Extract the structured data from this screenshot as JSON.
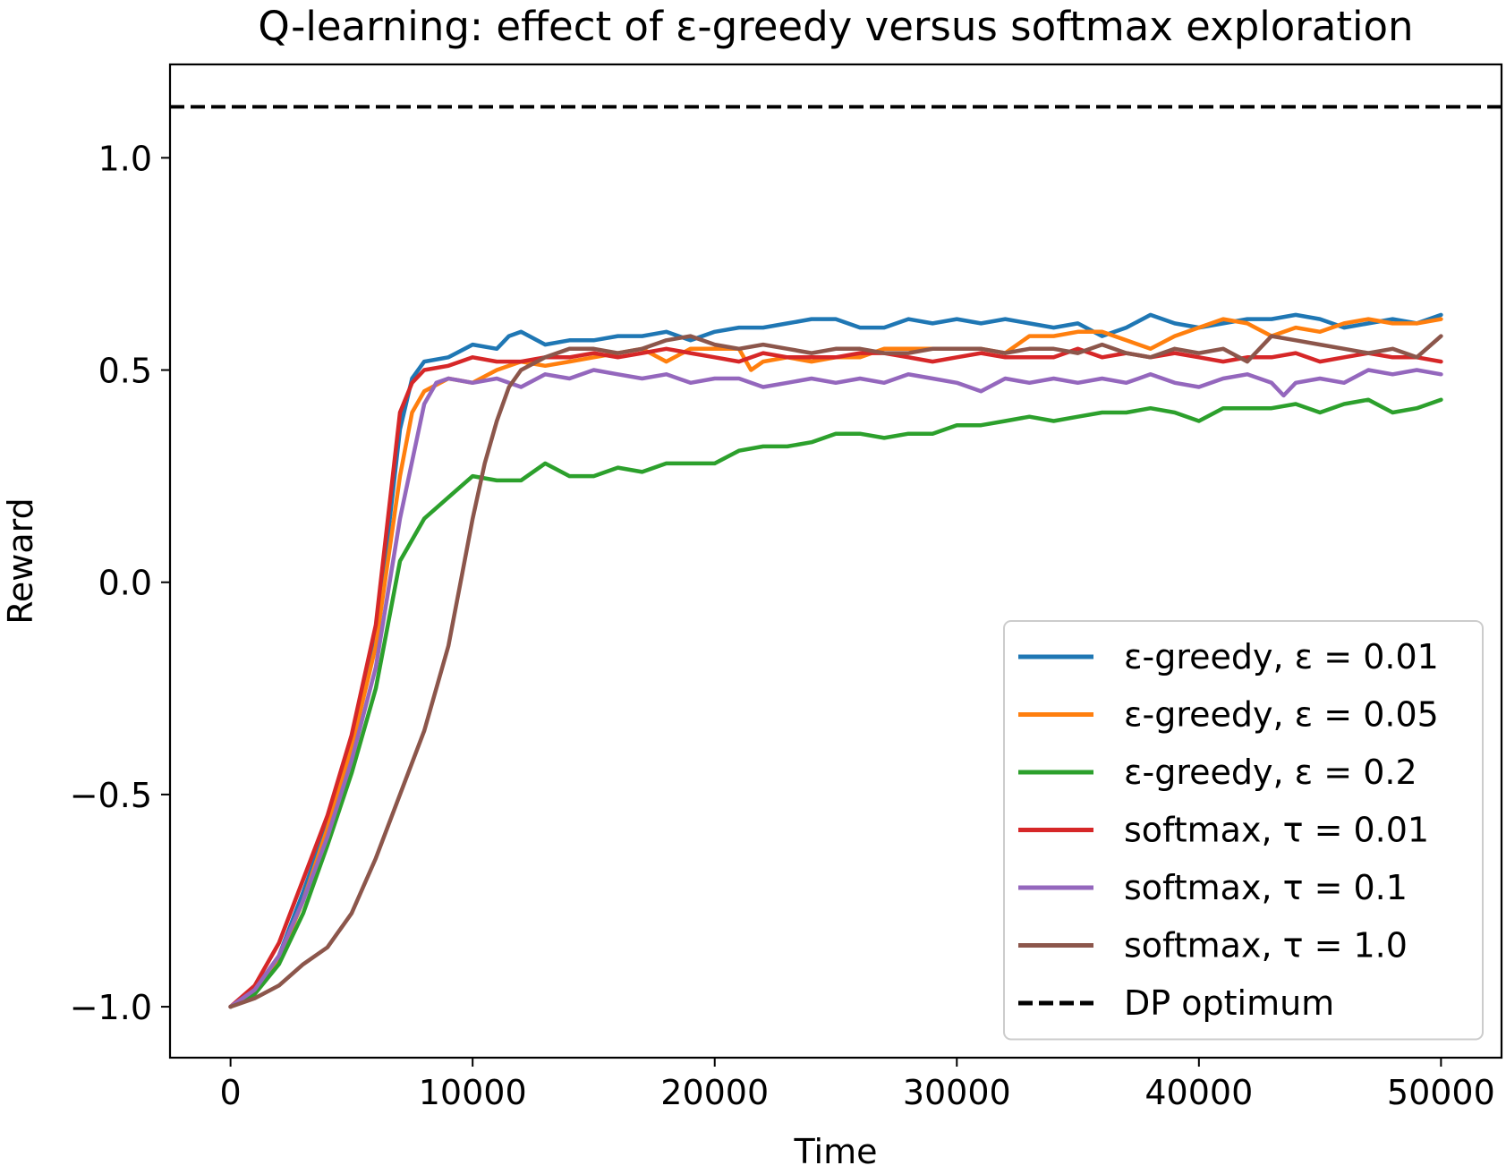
{
  "chart_data": {
    "type": "line",
    "title": "Q-learning: effect of ε-greedy versus softmax exploration",
    "xlabel": "Time",
    "ylabel": "Reward",
    "xlim": [
      -2500,
      52500
    ],
    "ylim": [
      -1.12,
      1.22
    ],
    "xticks": [
      0,
      10000,
      20000,
      30000,
      40000,
      50000
    ],
    "xtick_labels": [
      "0",
      "10000",
      "20000",
      "30000",
      "40000",
      "50000"
    ],
    "yticks": [
      -1.0,
      -0.5,
      0.0,
      0.5,
      1.0
    ],
    "ytick_labels": [
      "−1.0",
      "−0.5",
      "0.0",
      "0.5",
      "1.0"
    ],
    "grid": false,
    "legend_position": "lower-right",
    "series": [
      {
        "name": "ε-greedy, ε = 0.01",
        "color": "#1f77b4",
        "x": [
          0,
          1000,
          2000,
          3000,
          4000,
          5000,
          6000,
          7000,
          7500,
          8000,
          9000,
          10000,
          11000,
          11500,
          12000,
          13000,
          14000,
          15000,
          16000,
          17000,
          18000,
          19000,
          20000,
          21000,
          22000,
          23000,
          24000,
          25000,
          26000,
          27000,
          28000,
          29000,
          30000,
          31000,
          32000,
          33000,
          34000,
          35000,
          36000,
          37000,
          38000,
          39000,
          40000,
          41000,
          42000,
          43000,
          44000,
          45000,
          46000,
          47000,
          48000,
          49000,
          50000
        ],
        "y": [
          -1.0,
          -0.96,
          -0.88,
          -0.73,
          -0.57,
          -0.38,
          -0.14,
          0.36,
          0.48,
          0.52,
          0.53,
          0.56,
          0.55,
          0.58,
          0.59,
          0.56,
          0.57,
          0.57,
          0.58,
          0.58,
          0.59,
          0.57,
          0.59,
          0.6,
          0.6,
          0.61,
          0.62,
          0.62,
          0.6,
          0.6,
          0.62,
          0.61,
          0.62,
          0.61,
          0.62,
          0.61,
          0.6,
          0.61,
          0.58,
          0.6,
          0.63,
          0.61,
          0.6,
          0.61,
          0.62,
          0.62,
          0.63,
          0.62,
          0.6,
          0.61,
          0.62,
          0.61,
          0.63
        ]
      },
      {
        "name": "ε-greedy, ε = 0.05",
        "color": "#ff7f0e",
        "x": [
          0,
          1000,
          2000,
          3000,
          4000,
          5000,
          6000,
          7000,
          7500,
          8000,
          9000,
          10000,
          11000,
          12000,
          13000,
          14000,
          15000,
          16000,
          17000,
          18000,
          19000,
          20000,
          21000,
          21500,
          22000,
          23000,
          24000,
          25000,
          26000,
          27000,
          28000,
          29000,
          30000,
          31000,
          32000,
          33000,
          34000,
          35000,
          36000,
          37000,
          38000,
          39000,
          40000,
          41000,
          42000,
          43000,
          44000,
          45000,
          46000,
          47000,
          48000,
          49000,
          50000
        ],
        "y": [
          -1.0,
          -0.96,
          -0.89,
          -0.75,
          -0.58,
          -0.39,
          -0.15,
          0.25,
          0.4,
          0.45,
          0.48,
          0.47,
          0.5,
          0.52,
          0.51,
          0.52,
          0.53,
          0.54,
          0.55,
          0.52,
          0.55,
          0.55,
          0.55,
          0.5,
          0.52,
          0.53,
          0.52,
          0.53,
          0.53,
          0.55,
          0.55,
          0.55,
          0.55,
          0.55,
          0.54,
          0.58,
          0.58,
          0.59,
          0.59,
          0.57,
          0.55,
          0.58,
          0.6,
          0.62,
          0.61,
          0.58,
          0.6,
          0.59,
          0.61,
          0.62,
          0.61,
          0.61,
          0.62
        ]
      },
      {
        "name": "ε-greedy, ε = 0.2",
        "color": "#2ca02c",
        "x": [
          0,
          1000,
          2000,
          3000,
          4000,
          5000,
          6000,
          7000,
          8000,
          9000,
          10000,
          11000,
          12000,
          13000,
          14000,
          15000,
          16000,
          17000,
          18000,
          19000,
          20000,
          21000,
          22000,
          23000,
          24000,
          25000,
          26000,
          27000,
          28000,
          29000,
          30000,
          31000,
          32000,
          33000,
          34000,
          35000,
          36000,
          37000,
          38000,
          39000,
          40000,
          41000,
          42000,
          43000,
          44000,
          45000,
          46000,
          47000,
          48000,
          49000,
          50000
        ],
        "y": [
          -1.0,
          -0.97,
          -0.9,
          -0.78,
          -0.62,
          -0.45,
          -0.25,
          0.05,
          0.15,
          0.2,
          0.25,
          0.24,
          0.24,
          0.28,
          0.25,
          0.25,
          0.27,
          0.26,
          0.28,
          0.28,
          0.28,
          0.31,
          0.32,
          0.32,
          0.33,
          0.35,
          0.35,
          0.34,
          0.35,
          0.35,
          0.37,
          0.37,
          0.38,
          0.39,
          0.38,
          0.39,
          0.4,
          0.4,
          0.41,
          0.4,
          0.38,
          0.41,
          0.41,
          0.41,
          0.42,
          0.4,
          0.42,
          0.43,
          0.4,
          0.41,
          0.43
        ]
      },
      {
        "name": "softmax, τ = 0.01",
        "color": "#d62728",
        "x": [
          0,
          1000,
          2000,
          3000,
          4000,
          5000,
          6000,
          7000,
          7500,
          8000,
          9000,
          10000,
          11000,
          12000,
          13000,
          14000,
          15000,
          16000,
          17000,
          18000,
          19000,
          20000,
          21000,
          22000,
          23000,
          24000,
          25000,
          26000,
          27000,
          28000,
          29000,
          30000,
          31000,
          32000,
          33000,
          34000,
          35000,
          36000,
          37000,
          38000,
          39000,
          40000,
          41000,
          42000,
          43000,
          44000,
          45000,
          46000,
          47000,
          48000,
          49000,
          50000
        ],
        "y": [
          -1.0,
          -0.95,
          -0.85,
          -0.7,
          -0.55,
          -0.36,
          -0.1,
          0.4,
          0.47,
          0.5,
          0.51,
          0.53,
          0.52,
          0.52,
          0.53,
          0.53,
          0.54,
          0.53,
          0.54,
          0.55,
          0.54,
          0.53,
          0.52,
          0.54,
          0.53,
          0.53,
          0.53,
          0.54,
          0.54,
          0.53,
          0.52,
          0.53,
          0.54,
          0.53,
          0.53,
          0.53,
          0.55,
          0.53,
          0.54,
          0.53,
          0.54,
          0.53,
          0.52,
          0.53,
          0.53,
          0.54,
          0.52,
          0.53,
          0.54,
          0.53,
          0.53,
          0.52
        ]
      },
      {
        "name": "softmax, τ = 0.1",
        "color": "#9467bd",
        "x": [
          0,
          1000,
          2000,
          3000,
          4000,
          5000,
          6000,
          7000,
          8000,
          8500,
          9000,
          10000,
          11000,
          12000,
          13000,
          14000,
          15000,
          16000,
          17000,
          18000,
          19000,
          20000,
          21000,
          22000,
          23000,
          24000,
          25000,
          26000,
          27000,
          28000,
          29000,
          30000,
          31000,
          32000,
          33000,
          34000,
          35000,
          36000,
          37000,
          38000,
          39000,
          40000,
          41000,
          42000,
          43000,
          43500,
          44000,
          45000,
          46000,
          47000,
          48000,
          49000,
          50000
        ],
        "y": [
          -1.0,
          -0.96,
          -0.88,
          -0.75,
          -0.6,
          -0.42,
          -0.2,
          0.15,
          0.42,
          0.47,
          0.48,
          0.47,
          0.48,
          0.46,
          0.49,
          0.48,
          0.5,
          0.49,
          0.48,
          0.49,
          0.47,
          0.48,
          0.48,
          0.46,
          0.47,
          0.48,
          0.47,
          0.48,
          0.47,
          0.49,
          0.48,
          0.47,
          0.45,
          0.48,
          0.47,
          0.48,
          0.47,
          0.48,
          0.47,
          0.49,
          0.47,
          0.46,
          0.48,
          0.49,
          0.47,
          0.44,
          0.47,
          0.48,
          0.47,
          0.5,
          0.49,
          0.5,
          0.49
        ]
      },
      {
        "name": "softmax, τ = 1.0",
        "color": "#8c564b",
        "x": [
          0,
          1000,
          2000,
          3000,
          4000,
          5000,
          6000,
          7000,
          8000,
          9000,
          9500,
          10000,
          10500,
          11000,
          11500,
          12000,
          13000,
          14000,
          15000,
          16000,
          17000,
          18000,
          19000,
          20000,
          21000,
          22000,
          23000,
          24000,
          25000,
          26000,
          27000,
          28000,
          29000,
          30000,
          31000,
          32000,
          33000,
          34000,
          35000,
          36000,
          37000,
          38000,
          39000,
          40000,
          41000,
          42000,
          43000,
          44000,
          45000,
          46000,
          47000,
          48000,
          49000,
          50000
        ],
        "y": [
          -1.0,
          -0.98,
          -0.95,
          -0.9,
          -0.86,
          -0.78,
          -0.65,
          -0.5,
          -0.35,
          -0.15,
          0.0,
          0.15,
          0.28,
          0.38,
          0.46,
          0.5,
          0.53,
          0.55,
          0.55,
          0.54,
          0.55,
          0.57,
          0.58,
          0.56,
          0.55,
          0.56,
          0.55,
          0.54,
          0.55,
          0.55,
          0.54,
          0.54,
          0.55,
          0.55,
          0.55,
          0.54,
          0.55,
          0.55,
          0.54,
          0.56,
          0.54,
          0.53,
          0.55,
          0.54,
          0.55,
          0.52,
          0.58,
          0.57,
          0.56,
          0.55,
          0.54,
          0.55,
          0.53,
          0.58
        ]
      }
    ],
    "reference_line": {
      "name": "DP optimum",
      "y": 1.12,
      "color": "#000000",
      "style": "dashed"
    }
  }
}
